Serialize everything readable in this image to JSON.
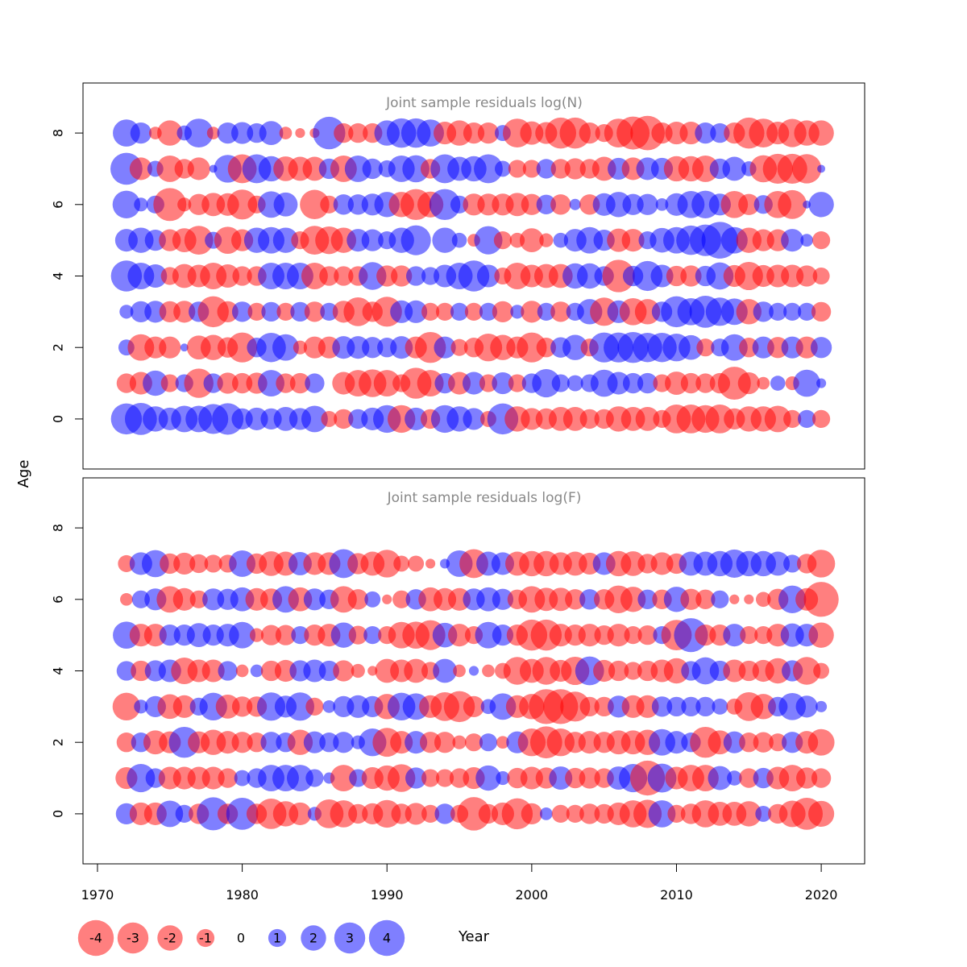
{
  "chart_data": {
    "type": "scatter",
    "subtype": "bubble",
    "xlabel": "Year",
    "ylabel": "Age",
    "xlim": [
      1969,
      2023
    ],
    "ylim": [
      -1.4,
      9.4
    ],
    "x_ticks": [
      1970,
      1980,
      1990,
      2000,
      2010,
      2020
    ],
    "y_ticks": [
      0,
      2,
      4,
      6,
      8
    ],
    "years": [
      1972,
      1973,
      1974,
      1975,
      1976,
      1977,
      1978,
      1979,
      1980,
      1981,
      1982,
      1983,
      1984,
      1985,
      1986,
      1987,
      1988,
      1989,
      1990,
      1991,
      1992,
      1993,
      1994,
      1995,
      1996,
      1997,
      1998,
      1999,
      2000,
      2001,
      2002,
      2003,
      2004,
      2005,
      2006,
      2007,
      2008,
      2009,
      2010,
      2011,
      2012,
      2013,
      2014,
      2015,
      2016,
      2017,
      2018,
      2019,
      2020
    ],
    "colors": {
      "positive": "#0000ff",
      "negative": "#ff0000",
      "opacity": 0.5
    },
    "legend": {
      "values": [
        -4,
        -3,
        -2,
        -1,
        0,
        1,
        2,
        3,
        4
      ],
      "labels": [
        "-4",
        "-3",
        "-2",
        "-1",
        "0",
        "1",
        "2",
        "3",
        "4"
      ]
    },
    "panels": [
      {
        "title": "Joint sample residuals log(N)",
        "ages": [
          0,
          1,
          2,
          3,
          4,
          5,
          6,
          7,
          8
        ],
        "residuals": [
          [
            3.0,
            3.2,
            2.0,
            1.6,
            2.2,
            2.2,
            2.8,
            3.1,
            1.4,
            1.6,
            1.4,
            1.8,
            1.5,
            2.2,
            -0.8,
            -1.2,
            1.2,
            1.6,
            2.4,
            -2.4,
            1.6,
            -1.2,
            2.4,
            2.0,
            1.5,
            -0.8,
            3.0,
            -2.0,
            -1.5,
            -1.4,
            -1.8,
            -1.8,
            -1.2,
            -1.2,
            -2.0,
            -1.8,
            -1.8,
            -1.0,
            -2.6,
            -2.6,
            -2.4,
            -2.6,
            -1.4,
            -2.0,
            -2.0,
            -2.2,
            -1.0,
            1.0,
            -1.0
          ],
          [
            -1.2,
            -1.6,
            2.0,
            -1.0,
            1.0,
            -2.7,
            1.2,
            -1.4,
            -1.3,
            -1.4,
            2.2,
            -1.2,
            -1.3,
            1.2,
            0.0,
            -1.6,
            -2.2,
            -2.4,
            -2.2,
            -1.0,
            -3.0,
            -2.2,
            1.3,
            -1.6,
            1.6,
            -1.0,
            1.5,
            -1.0,
            1.2,
            2.5,
            1.0,
            0.8,
            1.0,
            2.3,
            1.6,
            1.3,
            1.3,
            -1.0,
            -1.7,
            -1.3,
            -1.2,
            -1.3,
            -3.4,
            -1.5,
            -0.5,
            0.7,
            -0.6,
            2.3,
            0.3
          ],
          [
            0.8,
            -2.2,
            -1.5,
            -1.5,
            0.2,
            -1.8,
            -2.0,
            -1.3,
            -2.8,
            1.2,
            2.7,
            2.2,
            -0.6,
            -1.5,
            -1.5,
            1.6,
            1.6,
            1.4,
            1.2,
            1.6,
            -1.5,
            -3.0,
            1.5,
            -0.9,
            -1.2,
            -2.4,
            -2.0,
            -1.5,
            -2.8,
            -1.2,
            1.3,
            2.0,
            -1.0,
            2.8,
            2.8,
            3.0,
            2.7,
            2.7,
            2.4,
            1.9,
            -1.0,
            1.0,
            2.2,
            -1.2,
            1.5,
            -1.4,
            1.5,
            -1.5,
            1.4
          ],
          [
            0.6,
            1.4,
            1.5,
            -1.4,
            -1.5,
            1.3,
            -3.0,
            -1.4,
            1.3,
            -1.0,
            1.2,
            -1.0,
            1.2,
            -1.3,
            1.0,
            -1.5,
            -2.6,
            -1.3,
            -2.8,
            1.6,
            1.6,
            -1.0,
            -1.0,
            1.0,
            -1.0,
            1.0,
            -1.4,
            0.6,
            -1.5,
            1.0,
            -1.3,
            1.0,
            2.0,
            -2.5,
            1.6,
            -2.3,
            -2.0,
            1.3,
            3.0,
            2.3,
            3.2,
            2.5,
            2.2,
            -2.0,
            1.3,
            1.0,
            1.0,
            1.0,
            -1.2
          ],
          [
            3.0,
            2.2,
            1.7,
            -1.0,
            -1.8,
            -1.6,
            -2.2,
            -1.7,
            -1.2,
            -1.2,
            2.2,
            2.2,
            2.2,
            -2.2,
            -1.2,
            -1.2,
            -1.2,
            2.4,
            -1.4,
            -1.4,
            1.2,
            1.0,
            1.6,
            2.2,
            3.0,
            1.6,
            -0.9,
            -2.2,
            -1.6,
            -1.8,
            -1.8,
            2.0,
            2.0,
            1.2,
            -3.3,
            1.3,
            2.8,
            1.6,
            -1.3,
            -1.4,
            1.3,
            2.3,
            -1.5,
            -2.5,
            -1.5,
            -1.6,
            -1.6,
            -1.4,
            -0.9
          ],
          [
            1.6,
            2.0,
            1.4,
            -1.5,
            -1.8,
            -2.6,
            0.9,
            -2.3,
            -1.5,
            2.0,
            2.2,
            2.0,
            -1.0,
            -2.6,
            -2.4,
            -2.0,
            1.6,
            1.5,
            1.0,
            2.0,
            2.8,
            0.0,
            2.0,
            0.7,
            -0.5,
            2.5,
            -1.0,
            -0.7,
            -1.8,
            -0.6,
            0.7,
            1.6,
            2.2,
            1.4,
            -1.7,
            -1.6,
            1.0,
            1.9,
            2.2,
            2.7,
            3.1,
            4.2,
            2.2,
            -2.0,
            -1.5,
            -1.5,
            1.6,
            0.5,
            -1.0
          ],
          [
            2.4,
            0.6,
            1.0,
            -3.4,
            -0.6,
            -1.4,
            -1.7,
            -1.6,
            -2.8,
            -1.0,
            2.2,
            1.8,
            0.0,
            -2.7,
            -1.0,
            1.3,
            1.3,
            1.5,
            2.0,
            -2.0,
            -3.0,
            -2.1,
            3.0,
            1.0,
            -1.5,
            -1.5,
            -1.5,
            -1.7,
            -1.4,
            1.2,
            -1.3,
            0.4,
            -1.3,
            1.6,
            2.0,
            1.4,
            1.4,
            0.5,
            1.6,
            2.3,
            2.4,
            1.5,
            -2.3,
            -1.4,
            1.1,
            -2.3,
            -2.6,
            0.2,
            2.0
          ],
          [
            3.2,
            -1.6,
            0.8,
            -2.2,
            -1.2,
            -1.6,
            0.2,
            2.4,
            -2.6,
            2.6,
            2.0,
            -1.9,
            -1.8,
            -1.8,
            1.3,
            -2.2,
            2.2,
            1.3,
            0.9,
            2.2,
            2.3,
            -1.2,
            2.6,
            1.8,
            2.0,
            2.6,
            0.8,
            -1.0,
            -1.0,
            1.2,
            -1.2,
            -1.4,
            -1.2,
            -1.8,
            1.5,
            -1.6,
            1.6,
            1.5,
            -2.0,
            -2.0,
            -2.2,
            1.3,
            1.8,
            0.7,
            -2.3,
            -2.8,
            -2.8,
            -2.7,
            0.2
          ],
          [
            2.3,
            1.4,
            -0.5,
            -2.0,
            0.7,
            2.6,
            -0.5,
            1.4,
            1.5,
            1.2,
            1.8,
            -0.5,
            -0.3,
            -0.3,
            3.3,
            -1.2,
            -1.2,
            -1.2,
            2.0,
            2.7,
            2.7,
            2.3,
            -1.6,
            -2.0,
            -1.4,
            -1.4,
            0.8,
            -2.6,
            -1.7,
            -1.5,
            -3.0,
            -3.0,
            -1.4,
            -1.0,
            -2.6,
            -3.4,
            -3.7,
            -1.4,
            -1.6,
            -1.6,
            1.4,
            1.2,
            -1.4,
            -3.0,
            -2.6,
            -1.6,
            -2.5,
            -2.0,
            -2.0
          ]
        ]
      },
      {
        "title": "Joint sample residuals log(F)",
        "ages": [
          0,
          1,
          2,
          3,
          4,
          5,
          6,
          7
        ],
        "residuals": [
          [
            1.4,
            -1.6,
            -1.6,
            2.2,
            1.0,
            -1.3,
            3.4,
            -1.3,
            3.2,
            -1.3,
            -2.9,
            -2.0,
            -1.6,
            0.6,
            -2.6,
            -2.3,
            -1.2,
            -1.4,
            -2.4,
            -1.3,
            -1.5,
            -1.0,
            1.3,
            -1.0,
            -3.5,
            -1.2,
            -1.6,
            -3.0,
            -1.4,
            0.5,
            -1.0,
            -1.0,
            -1.3,
            -1.2,
            -1.6,
            -2.3,
            -2.5,
            2.3,
            -1.0,
            -1.3,
            -2.3,
            -1.8,
            -1.8,
            -2.0,
            0.8,
            -1.2,
            -2.2,
            -3.2,
            -2.1
          ],
          [
            -1.5,
            2.5,
            1.2,
            -1.6,
            -1.6,
            -1.6,
            -1.6,
            -1.2,
            0.8,
            1.2,
            2.2,
            2.2,
            2.2,
            1.0,
            0.4,
            -2.2,
            1.0,
            -1.5,
            -2.0,
            -2.4,
            1.4,
            -1.0,
            -1.0,
            -1.2,
            -1.5,
            2.0,
            0.6,
            -1.3,
            -1.6,
            -1.4,
            1.7,
            -1.3,
            -1.4,
            -1.2,
            1.7,
            2.5,
            -3.8,
            2.6,
            -1.6,
            -2.2,
            -2.2,
            1.8,
            0.7,
            -1.2,
            1.3,
            -1.6,
            -2.2,
            -1.4,
            -1.2
          ],
          [
            -1.2,
            1.2,
            -1.8,
            -1.5,
            3.0,
            -1.5,
            -2.0,
            -1.6,
            -1.4,
            -1.2,
            1.4,
            1.2,
            -2.0,
            1.5,
            1.2,
            1.4,
            0.6,
            2.4,
            -2.6,
            -1.6,
            1.6,
            -1.4,
            -1.4,
            -0.6,
            -1.0,
            1.0,
            -0.5,
            1.5,
            -2.4,
            -3.2,
            -2.4,
            -1.4,
            -1.6,
            -1.4,
            -1.8,
            -1.8,
            -2.0,
            2.2,
            1.6,
            1.2,
            -3.0,
            -1.8,
            1.5,
            -1.2,
            -1.3,
            -1.0,
            1.4,
            -1.6,
            -2.2
          ],
          [
            -2.4,
            0.6,
            1.4,
            -1.9,
            -1.6,
            1.0,
            2.4,
            -1.8,
            -1.3,
            -1.3,
            2.5,
            1.5,
            2.5,
            -1.0,
            0.5,
            1.4,
            1.6,
            1.4,
            -2.0,
            2.4,
            2.2,
            -1.6,
            -2.6,
            -3.0,
            -1.4,
            0.7,
            2.2,
            -1.6,
            -2.0,
            -3.8,
            -3.8,
            -2.8,
            -1.2,
            -1.2,
            1.5,
            -1.6,
            -1.6,
            1.3,
            1.2,
            1.2,
            1.2,
            0.8,
            -0.8,
            -2.6,
            -2.0,
            1.2,
            2.3,
            1.5,
            0.4
          ],
          [
            1.2,
            -1.3,
            1.4,
            1.6,
            -2.2,
            -1.6,
            -1.6,
            1.2,
            -0.5,
            0.5,
            -1.3,
            -1.5,
            1.4,
            1.6,
            1.3,
            -1.4,
            -0.6,
            -0.3,
            -1.8,
            -1.6,
            -1.8,
            -1.0,
            1.8,
            -0.5,
            0.3,
            -0.5,
            -0.8,
            -2.4,
            -1.8,
            -2.4,
            -1.5,
            -2.5,
            2.6,
            -1.5,
            -1.3,
            -1.0,
            -1.3,
            -1.6,
            -2.0,
            1.2,
            2.3,
            1.3,
            -1.6,
            -1.3,
            -1.5,
            -2.0,
            1.4,
            -2.4,
            -0.8
          ],
          [
            2.3,
            -1.6,
            -1.6,
            1.4,
            1.4,
            1.8,
            1.4,
            1.6,
            2.2,
            -0.6,
            -1.3,
            -1.3,
            1.0,
            -1.4,
            -1.6,
            2.0,
            -1.1,
            1.0,
            -1.0,
            -2.2,
            -2.3,
            -2.8,
            1.9,
            -1.6,
            -1.0,
            2.2,
            1.4,
            -1.4,
            -3.0,
            -3.0,
            -1.6,
            -1.4,
            -1.6,
            -1.2,
            -1.6,
            -1.0,
            -1.2,
            1.0,
            -2.9,
            3.6,
            -1.4,
            -1.4,
            1.6,
            -1.0,
            -1.0,
            -1.6,
            1.7,
            1.6,
            -2.0
          ],
          [
            -0.5,
            1.0,
            1.5,
            -2.2,
            -1.6,
            -1.0,
            1.5,
            1.4,
            1.8,
            -1.6,
            -1.5,
            2.2,
            -1.8,
            1.5,
            1.2,
            -2.2,
            -1.3,
            0.8,
            -0.3,
            -1.0,
            1.3,
            -1.8,
            -1.6,
            -1.6,
            1.5,
            1.8,
            1.4,
            -1.2,
            -2.2,
            -1.7,
            -1.7,
            -1.3,
            1.3,
            -1.3,
            -2.4,
            -2.0,
            1.2,
            -1.2,
            2.0,
            -1.4,
            -1.2,
            1.0,
            -0.3,
            -0.3,
            -0.7,
            -1.4,
            2.4,
            -1.6,
            -3.8
          ],
          [
            -0.9,
            1.6,
            2.3,
            -1.3,
            -1.5,
            -1.1,
            -1.0,
            -1.0,
            2.2,
            -1.3,
            -1.9,
            -1.8,
            1.7,
            -1.6,
            -1.6,
            2.6,
            -1.4,
            -1.8,
            -2.4,
            -0.8,
            -0.8,
            -0.3,
            0.3,
            2.2,
            -2.6,
            1.8,
            1.6,
            -1.8,
            -2.0,
            -2.0,
            -1.6,
            -1.8,
            -1.5,
            1.6,
            -2.0,
            -1.9,
            -1.2,
            -1.6,
            -1.3,
            1.8,
            1.8,
            2.0,
            2.5,
            2.0,
            2.0,
            1.8,
            1.0,
            -1.2,
            -2.4
          ]
        ]
      }
    ]
  }
}
